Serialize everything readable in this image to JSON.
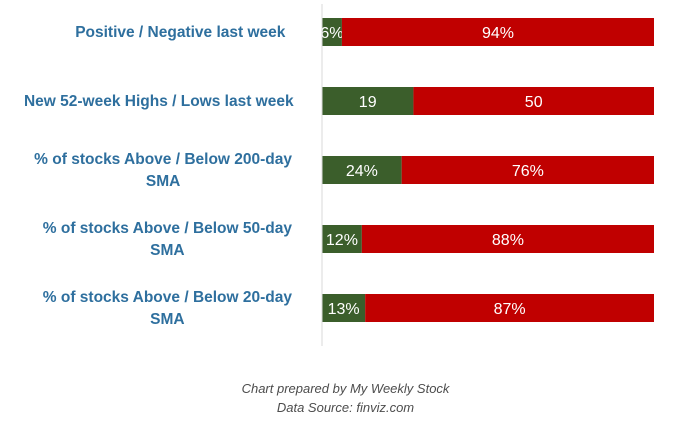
{
  "chart_data": {
    "type": "bar",
    "orientation": "horizontal",
    "stacked": true,
    "normalized": true,
    "categories": [
      "Positive / Negative last week",
      "New 52-week Highs / Lows last week",
      "% of stocks Above / Below 200-day SMA",
      "% of stocks Above / Below 50-day SMA",
      "% of stocks Above / Below 20-day SMA"
    ],
    "series": [
      {
        "values": [
          6,
          19,
          24,
          12,
          13
        ],
        "labels": [
          "6%",
          "19",
          "24%",
          "12%",
          "13%"
        ],
        "color": "#3b5e2b"
      },
      {
        "values": [
          94,
          50,
          76,
          88,
          87
        ],
        "labels": [
          "94%",
          "50",
          "76%",
          "88%",
          "87%"
        ],
        "color": "#c00000"
      }
    ],
    "grid": false,
    "legend": "none"
  },
  "footer": {
    "credit": "Chart prepared by My Weekly Stock",
    "source": "Data Source: finviz.com"
  }
}
